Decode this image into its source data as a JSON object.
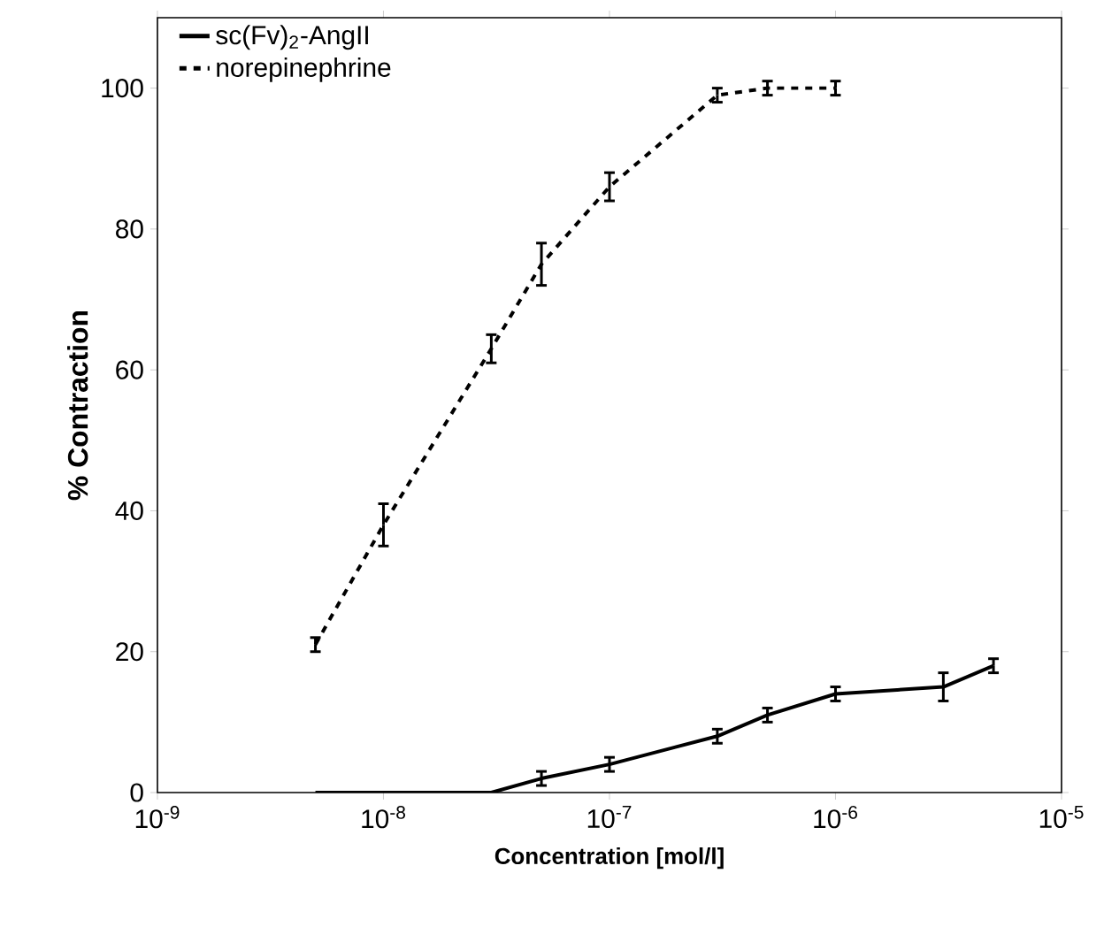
{
  "chart_data": {
    "type": "line",
    "xlabel": "Concentration [mol/l]",
    "ylabel": "% Contraction",
    "log": "x",
    "xlim": [
      1e-09,
      1e-05
    ],
    "ylim": [
      0,
      110
    ],
    "xticks": [
      {
        "value": 1e-09,
        "label": "10$^{-9}$"
      },
      {
        "value": 1e-08,
        "label": "10$^{-8}$"
      },
      {
        "value": 1e-07,
        "label": "10$^{-7}$"
      },
      {
        "value": 1e-06,
        "label": "10$^{-6}$"
      },
      {
        "value": 1e-05,
        "label": "10$^{-5}$"
      }
    ],
    "yticks": [
      0,
      20,
      40,
      60,
      80,
      100
    ],
    "grid": false,
    "legend": "top left",
    "marker": "none",
    "series": [
      {
        "name": "sc(Fv)$_{2}$-AngII",
        "color": "#000000",
        "line_style": "solid",
        "x": [
          5e-09,
          1e-08,
          2e-08,
          3e-08,
          5e-08,
          1e-07,
          3e-07,
          5e-07,
          1e-06,
          3e-06,
          5e-06
        ],
        "values": [
          0,
          0,
          0,
          0,
          2,
          4,
          8,
          11,
          14,
          15,
          18
        ],
        "errors": [
          null,
          null,
          null,
          null,
          1,
          1,
          1,
          1,
          1,
          2,
          1
        ]
      },
      {
        "name": "norepinephrine",
        "color": "#000000",
        "line_style": "dotted",
        "x": [
          5e-09,
          1e-08,
          3e-08,
          5e-08,
          1e-07,
          3e-07,
          5e-07,
          1e-06
        ],
        "values": [
          21,
          38,
          63,
          75,
          86,
          99,
          100,
          100
        ],
        "errors": [
          1,
          3,
          2,
          3,
          2,
          1,
          1,
          1
        ]
      }
    ]
  }
}
